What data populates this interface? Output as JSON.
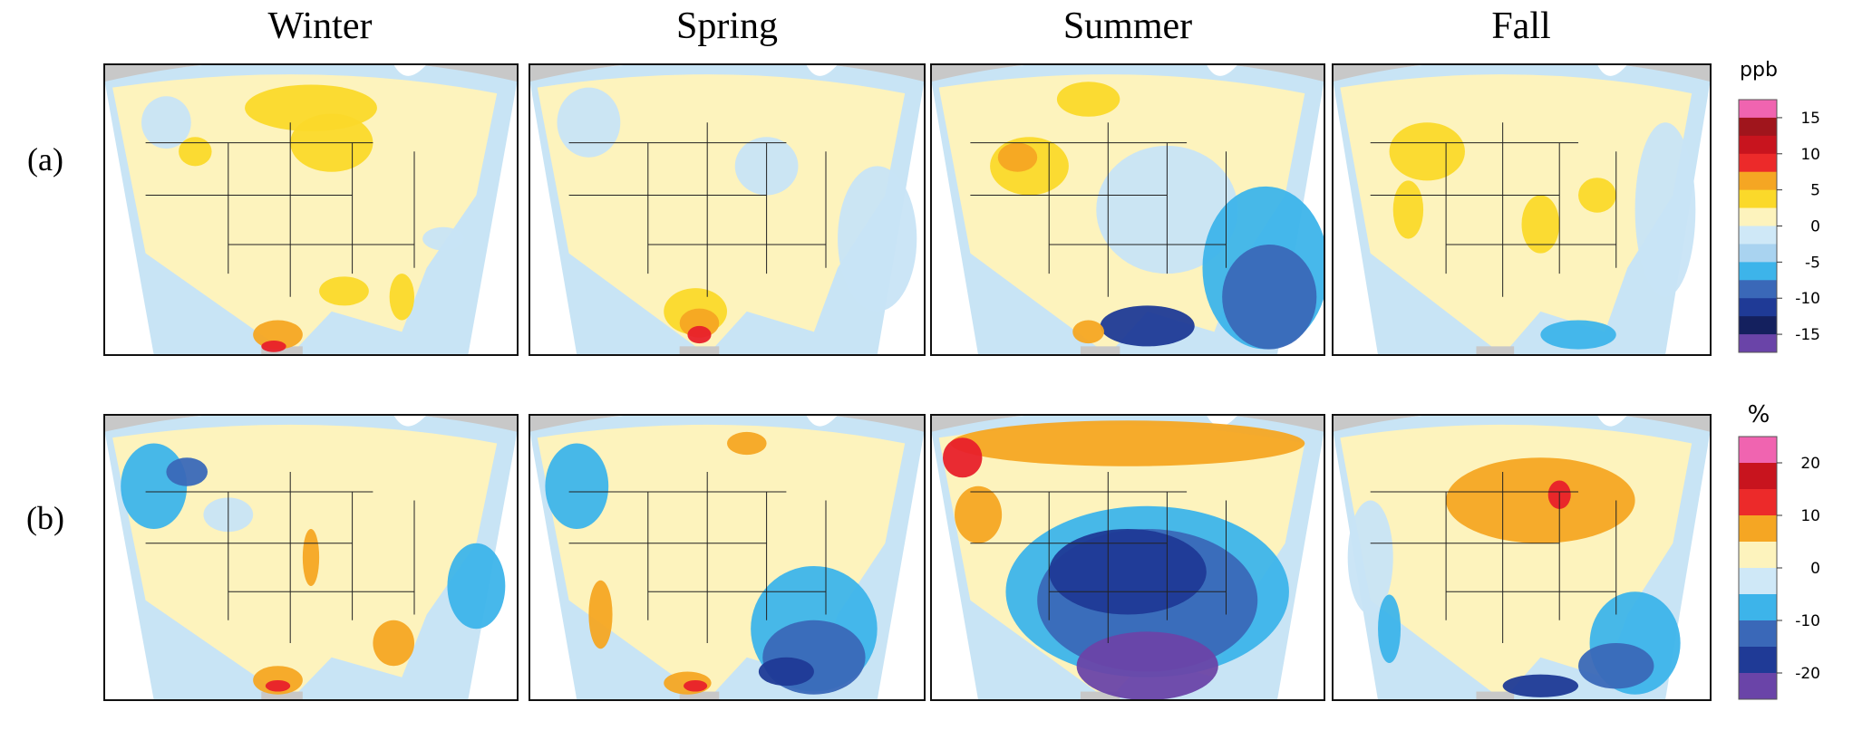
{
  "column_titles": [
    "Winter",
    "Spring",
    "Summer",
    "Fall"
  ],
  "row_labels": [
    "(a)",
    "(b)"
  ],
  "colorbars": [
    {
      "unit": "ppb",
      "ticks": [
        15,
        10,
        5,
        0,
        -5,
        -10,
        -15
      ],
      "colors": [
        "#f064b0",
        "#a0151c",
        "#c8141e",
        "#ec2a2a",
        "#f5a623",
        "#fbd92a",
        "#fdf3bd",
        "#cfe8f7",
        "#a9d3f0",
        "#3db4ea",
        "#3a68b8",
        "#1f3a96",
        "#14205e",
        "#6a44a8"
      ]
    },
    {
      "unit": "%",
      "ticks": [
        20,
        10,
        0,
        -10,
        -20
      ],
      "colors": [
        "#f064b0",
        "#c8141e",
        "#ec2a2a",
        "#f5a623",
        "#fdf3bd",
        "#cfe8f7",
        "#3db4ea",
        "#3a68b8",
        "#1f3a96",
        "#6a44a8"
      ]
    }
  ]
}
